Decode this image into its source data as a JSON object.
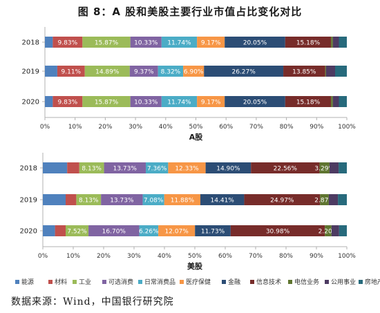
{
  "title": "图 8：A 股和美股主要行业市值占比变化对比",
  "source": "数据来源：Wind，中国银行研究院",
  "legend": [
    {
      "name": "能源",
      "color": "#4f81bd"
    },
    {
      "name": "材料",
      "color": "#c0504d"
    },
    {
      "name": "工业",
      "color": "#9bbb59"
    },
    {
      "name": "可选消费",
      "color": "#8064a2"
    },
    {
      "name": "日常消费品",
      "color": "#4bacc6"
    },
    {
      "name": "医疗保健",
      "color": "#f79646"
    },
    {
      "name": "金融",
      "color": "#2c4d75"
    },
    {
      "name": "信息技术",
      "color": "#772c2a"
    },
    {
      "name": "电信业务",
      "color": "#5f7530"
    },
    {
      "name": "公用事业",
      "color": "#4d3b62"
    },
    {
      "name": "房地产",
      "color": "#276a7c"
    }
  ],
  "chart_data": [
    {
      "type": "bar",
      "orientation": "horizontal",
      "stacked": true,
      "xlabel": "A股",
      "xlim": [
        0,
        100
      ],
      "x_ticks": [
        "0%",
        "10%",
        "20%",
        "30%",
        "40%",
        "50%",
        "60%",
        "70%",
        "80%",
        "90%",
        "100%"
      ],
      "categories": [
        "2018",
        "2019",
        "2020"
      ],
      "series": [
        {
          "name": "能源",
          "values": [
            2.6,
            4.1,
            2.6
          ]
        },
        {
          "name": "材料",
          "values": [
            9.83,
            9.11,
            9.83
          ],
          "labels": [
            "9.83%",
            "9.11%",
            "9.83%"
          ]
        },
        {
          "name": "工业",
          "values": [
            15.87,
            14.89,
            15.87
          ],
          "labels": [
            "15.87%",
            "14.89%",
            "15.87%"
          ]
        },
        {
          "name": "可选消费",
          "values": [
            10.33,
            9.37,
            10.33
          ],
          "labels": [
            "10.33%",
            "9.37%",
            "10.33%"
          ]
        },
        {
          "name": "日常消费品",
          "values": [
            11.74,
            8.32,
            11.74
          ],
          "labels": [
            "11.74%",
            "8.32%",
            "11.74%"
          ]
        },
        {
          "name": "医疗保健",
          "values": [
            9.17,
            6.9,
            9.17
          ],
          "labels": [
            "9.17%",
            "6.90%",
            "9.17%"
          ]
        },
        {
          "name": "金融",
          "values": [
            20.05,
            26.27,
            20.05
          ],
          "labels": [
            "20.05%",
            "26.27%",
            "20.05%"
          ]
        },
        {
          "name": "信息技术",
          "values": [
            15.18,
            13.85,
            15.18
          ],
          "labels": [
            "15.18%",
            "13.85%",
            "15.18%"
          ]
        },
        {
          "name": "电信业务",
          "values": [
            0.6,
            0.3,
            0.6
          ]
        },
        {
          "name": "公用事业",
          "values": [
            2.0,
            3.0,
            2.0
          ]
        },
        {
          "name": "房地产",
          "values": [
            2.63,
            3.89,
            2.63
          ]
        }
      ]
    },
    {
      "type": "bar",
      "orientation": "horizontal",
      "stacked": true,
      "xlabel": "美股",
      "xlim": [
        0,
        100
      ],
      "x_ticks": [
        "0%",
        "10%",
        "20%",
        "30%",
        "40%",
        "50%",
        "60%",
        "70%",
        "80%",
        "90%",
        "100%"
      ],
      "categories": [
        "2018",
        "2019",
        "2020"
      ],
      "series": [
        {
          "name": "能源",
          "values": [
            8.0,
            7.5,
            4.0
          ]
        },
        {
          "name": "材料",
          "values": [
            4.0,
            3.5,
            3.5
          ]
        },
        {
          "name": "工业",
          "values": [
            8.13,
            8.13,
            7.52
          ],
          "labels": [
            "8.13%",
            "8.13%",
            "7.52%"
          ]
        },
        {
          "name": "可选消费",
          "values": [
            13.73,
            13.73,
            16.7
          ],
          "labels": [
            "13.73%",
            "13.73%",
            "16.70%"
          ]
        },
        {
          "name": "日常消费品",
          "values": [
            7.36,
            7.08,
            6.26
          ],
          "labels": [
            "7.36%",
            "7.08%",
            "6.26%"
          ]
        },
        {
          "name": "医疗保健",
          "values": [
            12.33,
            11.88,
            12.07
          ],
          "labels": [
            "12.33%",
            "11.88%",
            "12.07%"
          ]
        },
        {
          "name": "金融",
          "values": [
            14.9,
            14.41,
            11.73
          ],
          "labels": [
            "14.90%",
            "14.41%",
            "11.73%"
          ]
        },
        {
          "name": "信息技术",
          "values": [
            22.56,
            24.97,
            30.98
          ],
          "labels": [
            "22.56%",
            "24.97%",
            "30.98%"
          ]
        },
        {
          "name": "电信业务",
          "values": [
            3.29,
            2.87,
            2.2
          ],
          "labels": [
            "3.29%",
            "2.87%",
            "2.20%"
          ]
        },
        {
          "name": "公用事业",
          "values": [
            3.0,
            3.0,
            2.5
          ]
        },
        {
          "name": "房地产",
          "values": [
            2.7,
            2.93,
            2.54
          ]
        }
      ]
    }
  ]
}
